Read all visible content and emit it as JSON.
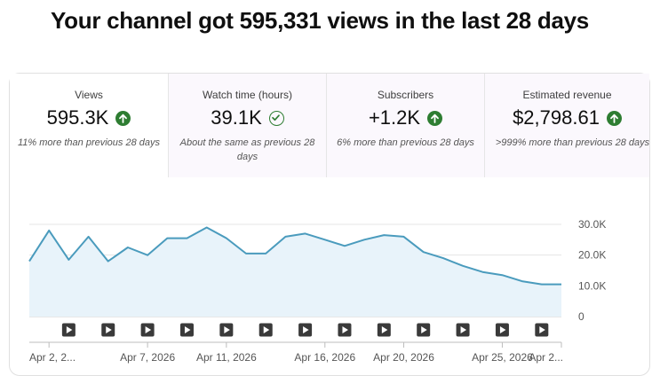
{
  "headline": "Your channel got 595,331 views in the last 28 days",
  "metrics": [
    {
      "label": "Views",
      "value": "595.3K",
      "icon": "arrow-up-circle-icon",
      "compare": "11% more than previous 28 days"
    },
    {
      "label": "Watch time (hours)",
      "value": "39.1K",
      "icon": "check-circle-icon",
      "compare": "About the same as previous 28 days"
    },
    {
      "label": "Subscribers",
      "value": "+1.2K",
      "icon": "arrow-up-circle-icon",
      "compare": "6% more than previous 28 days"
    },
    {
      "label": "Estimated revenue",
      "value": "$2,798.61",
      "icon": "arrow-up-circle-icon",
      "compare": ">999% more than previous 28 days"
    }
  ],
  "colors": {
    "accent": "#4a9bbd",
    "fill": "#e8f3fa",
    "up": "#2e7d32"
  },
  "chart_data": {
    "type": "area",
    "ylim": [
      0,
      30000
    ],
    "y_ticks": [
      "30.0K",
      "20.0K",
      "10.0K",
      "0"
    ],
    "x_tick_labels": [
      "Apr 2, 2...",
      "Apr 7, 2026",
      "Apr 11, 2026",
      "Apr 16, 2026",
      "Apr 20, 2026",
      "Apr 25, 2026",
      "Apr 2..."
    ],
    "x_tick_indices": [
      1,
      6,
      10,
      15,
      19,
      24,
      27
    ],
    "grid": true,
    "values": [
      18000,
      28000,
      18500,
      26000,
      18000,
      22500,
      20000,
      25500,
      25500,
      29000,
      25500,
      20500,
      20500,
      26000,
      27000,
      25000,
      23000,
      25000,
      26500,
      26000,
      21000,
      19000,
      16500,
      14500,
      13500,
      11500,
      10500,
      10500
    ],
    "video_markers": [
      2,
      4,
      6,
      8,
      10,
      12,
      14,
      16,
      18,
      20,
      22,
      24,
      26
    ],
    "marker_icon": "play-icon"
  }
}
